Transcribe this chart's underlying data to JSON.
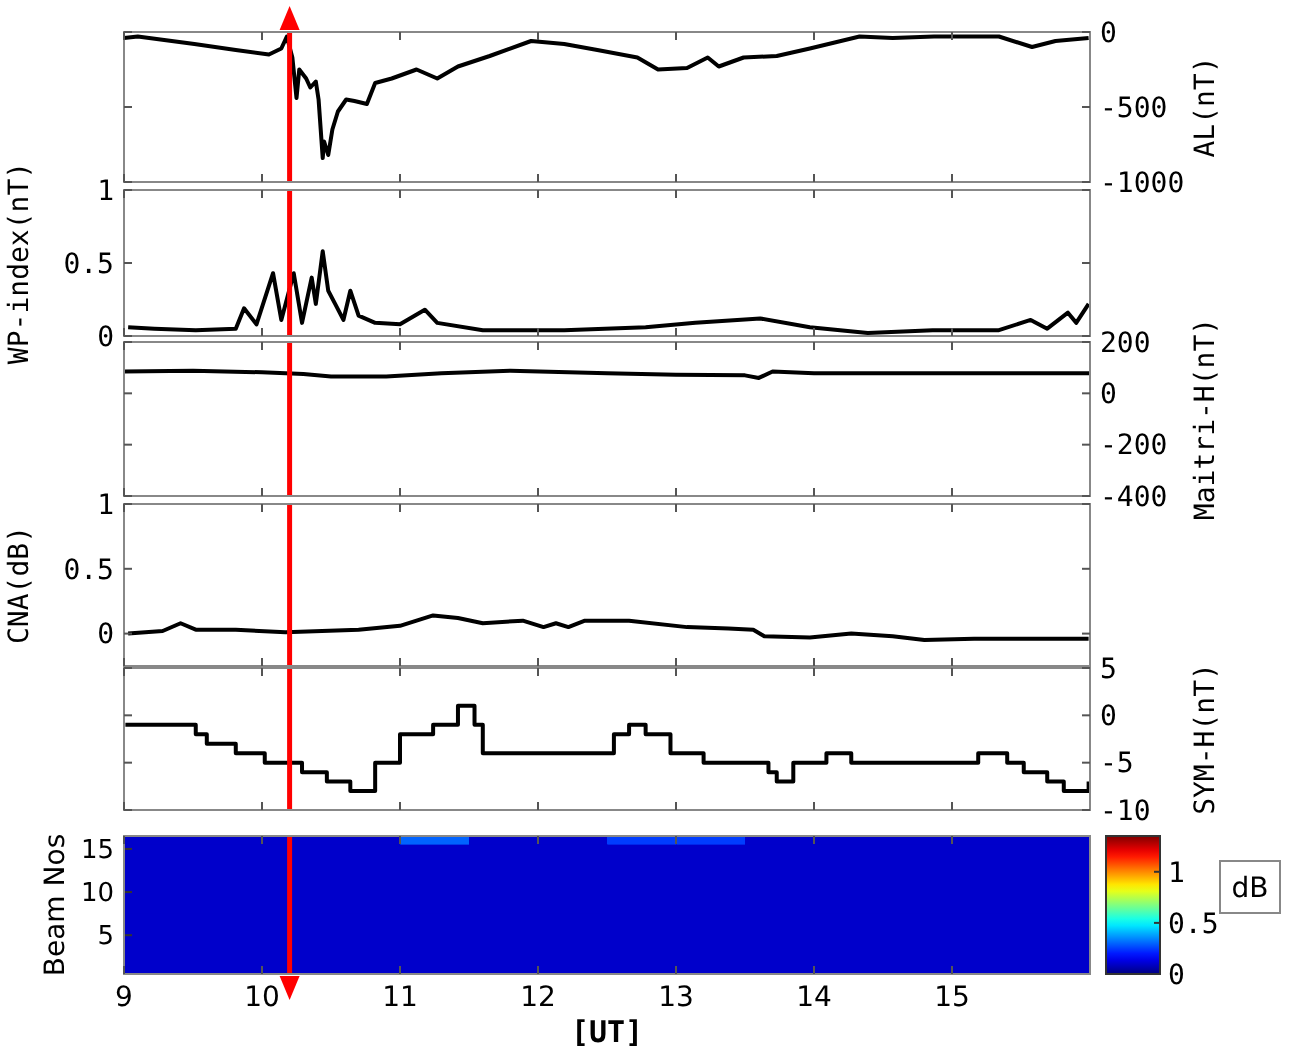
{
  "chart_data": [
    {
      "type": "line",
      "y2label": "AL(nT)",
      "xlim": [
        9,
        16
      ],
      "xticks": [
        9,
        10,
        11,
        12,
        13,
        14,
        15
      ],
      "y2lim": [
        -1000,
        0
      ],
      "y2ticks": [
        0,
        -500,
        -1000
      ],
      "tick_labels": "y",
      "ref_lines": [
        {
          "axis": "x",
          "value": 10.2,
          "color": "#ff0000"
        }
      ],
      "series": [
        {
          "axis": "y2",
          "color": "#000000",
          "x": [
            9.0,
            9.1,
            9.51,
            9.81,
            10.05,
            10.14,
            10.18,
            10.22,
            10.25,
            10.27,
            10.32,
            10.35,
            10.39,
            10.41,
            10.44,
            10.45,
            10.48,
            10.51,
            10.55,
            10.61,
            10.67,
            10.76,
            10.82,
            10.94,
            11.12,
            11.27,
            11.42,
            11.65,
            11.95,
            12.19,
            12.43,
            12.72,
            12.87,
            13.08,
            13.23,
            13.31,
            13.49,
            13.73,
            13.97,
            14.33,
            14.57,
            14.87,
            15.34,
            15.58,
            15.75,
            15.99
          ],
          "values": [
            -40,
            -30,
            -80,
            -120,
            -150,
            -110,
            -30,
            -170,
            -440,
            -250,
            -310,
            -370,
            -330,
            -450,
            -840,
            -730,
            -820,
            -650,
            -530,
            -450,
            -460,
            -480,
            -340,
            -310,
            -250,
            -310,
            -230,
            -160,
            -60,
            -80,
            -120,
            -170,
            -250,
            -240,
            -170,
            -230,
            -170,
            -160,
            -110,
            -30,
            -40,
            -30,
            -30,
            -100,
            -60,
            -40
          ]
        }
      ]
    },
    {
      "type": "line",
      "ylabel": "WP-index(nT)",
      "xlim": [
        9,
        16
      ],
      "xticks": [
        9,
        10,
        11,
        12,
        13,
        14,
        15
      ],
      "ylim": [
        0,
        1
      ],
      "yticks": [
        0,
        0.5,
        1
      ],
      "tick_labels": "y",
      "ref_lines": [
        {
          "axis": "x",
          "value": 10.2,
          "color": "#ff0000"
        }
      ],
      "series": [
        {
          "color": "#000000",
          "x": [
            9.03,
            9.22,
            9.52,
            9.81,
            9.87,
            9.96,
            10.08,
            10.14,
            10.23,
            10.29,
            10.36,
            10.39,
            10.44,
            10.48,
            10.53,
            10.59,
            10.64,
            10.7,
            10.82,
            11.0,
            11.18,
            11.27,
            11.6,
            12.19,
            12.78,
            13.14,
            13.61,
            13.97,
            14.39,
            14.86,
            15.34,
            15.57,
            15.69,
            15.84,
            15.9,
            15.99
          ],
          "values": [
            0.06,
            0.05,
            0.04,
            0.05,
            0.19,
            0.08,
            0.43,
            0.11,
            0.43,
            0.09,
            0.4,
            0.22,
            0.58,
            0.31,
            0.22,
            0.11,
            0.31,
            0.14,
            0.09,
            0.08,
            0.18,
            0.09,
            0.04,
            0.04,
            0.06,
            0.09,
            0.12,
            0.06,
            0.02,
            0.04,
            0.04,
            0.11,
            0.05,
            0.16,
            0.09,
            0.22
          ]
        }
      ]
    },
    {
      "type": "line",
      "y2label": "Maitri-H(nT)",
      "xlim": [
        9,
        16
      ],
      "xticks": [
        9,
        10,
        11,
        12,
        13,
        14,
        15
      ],
      "y2lim": [
        -400,
        200
      ],
      "y2ticks": [
        200,
        0,
        -200,
        -400
      ],
      "tick_labels": "y",
      "ref_lines": [
        {
          "axis": "x",
          "value": 10.2,
          "color": "#ff0000"
        }
      ],
      "series": [
        {
          "axis": "y2",
          "color": "#000000",
          "x": [
            9.0,
            9.5,
            10.0,
            10.3,
            10.5,
            10.9,
            11.3,
            11.8,
            12.5,
            13.0,
            13.5,
            13.6,
            13.7,
            14.0,
            15.0,
            16.0
          ],
          "values": [
            85,
            88,
            82,
            75,
            66,
            66,
            78,
            88,
            78,
            72,
            70,
            60,
            85,
            78,
            78,
            78
          ]
        }
      ]
    },
    {
      "type": "line",
      "ylabel": "CNA(dB)",
      "xlim": [
        9,
        16
      ],
      "xticks": [
        9,
        10,
        11,
        12,
        13,
        14,
        15
      ],
      "ylim": [
        -0.25,
        1
      ],
      "yticks": [
        0,
        0.5,
        1
      ],
      "tick_labels": "y",
      "ref_lines": [
        {
          "axis": "x",
          "value": 10.2,
          "color": "#ff0000"
        }
      ],
      "series": [
        {
          "color": "#000000",
          "x": [
            9.03,
            9.28,
            9.41,
            9.52,
            9.81,
            10.17,
            10.7,
            11.0,
            11.24,
            11.42,
            11.6,
            11.89,
            12.04,
            12.13,
            12.22,
            12.34,
            12.66,
            13.08,
            13.38,
            13.56,
            13.64,
            13.97,
            14.27,
            14.57,
            14.8,
            15.16,
            15.99
          ],
          "values": [
            0,
            0.02,
            0.08,
            0.03,
            0.03,
            0.01,
            0.03,
            0.06,
            0.14,
            0.12,
            0.08,
            0.1,
            0.05,
            0.08,
            0.05,
            0.1,
            0.1,
            0.05,
            0.04,
            0.03,
            -0.02,
            -0.03,
            0,
            -0.02,
            -0.05,
            -0.04,
            -0.04
          ]
        }
      ]
    },
    {
      "type": "step",
      "y2label": "SYM-H(nT)",
      "xlim": [
        9,
        16
      ],
      "xticks": [
        9,
        10,
        11,
        12,
        13,
        14,
        15
      ],
      "y2lim": [
        -10,
        5
      ],
      "y2ticks": [
        5,
        0,
        -5,
        -10
      ],
      "tick_labels": "y",
      "ref_lines": [
        {
          "axis": "x",
          "value": 10.2,
          "color": "#ff0000"
        }
      ],
      "series": [
        {
          "axis": "y2",
          "color": "#000000",
          "x": [
            9.01,
            9.52,
            9.6,
            9.81,
            9.99,
            10.02,
            10.29,
            10.47,
            10.64,
            10.82,
            11.0,
            11.24,
            11.42,
            11.54,
            11.6,
            12.31,
            12.55,
            12.66,
            12.78,
            12.96,
            13.2,
            13.67,
            13.73,
            13.85,
            14.09,
            14.27,
            15.16,
            15.19,
            15.4,
            15.52,
            15.69,
            15.81,
            15.99
          ],
          "values": [
            -1,
            -2,
            -3,
            -4,
            -4,
            -5,
            -6,
            -7,
            -8,
            -5,
            -2,
            -1,
            1,
            -1,
            -4,
            -4,
            -2,
            -1,
            -2,
            -4,
            -5,
            -6,
            -7,
            -5,
            -4,
            -5,
            -5,
            -4,
            -5,
            -6,
            -7,
            -8,
            -7
          ]
        }
      ]
    },
    {
      "type": "heatmap",
      "xlabel": "[UT]",
      "ylabel": "Beam Nos",
      "clabel": "dB",
      "xlim": [
        9,
        16
      ],
      "xticks": [
        9,
        10,
        11,
        12,
        13,
        14,
        15
      ],
      "clim": [
        0,
        1.35
      ],
      "cticks": [
        0,
        0.5,
        1
      ],
      "ref_lines": [
        {
          "axis": "x",
          "value": 10.2,
          "color": "#ff0000"
        }
      ],
      "x": [
        9.25,
        9.75,
        10.25,
        10.75,
        11.25,
        11.75,
        12.25,
        12.75,
        13.25,
        13.75,
        14.25,
        14.75,
        15.25,
        15.75
      ],
      "y_categories": [
        null,
        "15",
        null,
        null,
        null,
        null,
        "10",
        null,
        null,
        null,
        null,
        "5",
        null,
        null,
        null,
        null
      ],
      "cells": [
        [
          0.1,
          0.1,
          0.1,
          0.1,
          0.3,
          0.1,
          0.1,
          0.25,
          0.25,
          0.1,
          0.1,
          0.1,
          0.1,
          0.1
        ],
        [
          0.1,
          0.1,
          0.1,
          0.1,
          0.1,
          0.1,
          0.1,
          0.1,
          0.1,
          0.1,
          0.1,
          0.1,
          0.1,
          0.1
        ],
        [
          0.1,
          0.1,
          0.1,
          0.1,
          0.1,
          0.1,
          0.1,
          0.1,
          0.1,
          0.1,
          0.1,
          0.1,
          0.1,
          0.1
        ],
        [
          0.1,
          0.1,
          0.1,
          0.1,
          0.1,
          0.1,
          0.1,
          0.1,
          0.1,
          0.1,
          0.1,
          0.1,
          0.1,
          0.1
        ],
        [
          0.1,
          0.1,
          0.1,
          0.1,
          0.1,
          0.1,
          0.1,
          0.1,
          0.1,
          0.1,
          0.1,
          0.1,
          0.1,
          0.1
        ],
        [
          0.1,
          0.1,
          0.1,
          0.1,
          0.1,
          0.1,
          0.1,
          0.1,
          0.1,
          0.1,
          0.1,
          0.1,
          0.1,
          0.1
        ],
        [
          0.1,
          0.1,
          0.1,
          0.1,
          0.1,
          0.1,
          0.1,
          0.1,
          0.1,
          0.1,
          0.1,
          0.1,
          0.1,
          0.1
        ],
        [
          0.1,
          0.1,
          0.1,
          0.1,
          0.1,
          0.1,
          0.1,
          0.1,
          0.1,
          0.1,
          0.1,
          0.1,
          0.1,
          0.1
        ],
        [
          0.1,
          0.1,
          0.1,
          0.1,
          0.1,
          0.1,
          0.1,
          0.1,
          0.1,
          0.1,
          0.1,
          0.1,
          0.1,
          0.1
        ],
        [
          0.1,
          0.1,
          0.1,
          0.1,
          0.1,
          0.1,
          0.1,
          0.1,
          0.1,
          0.1,
          0.1,
          0.1,
          0.1,
          0.1
        ],
        [
          0.1,
          0.1,
          0.1,
          0.1,
          0.1,
          0.1,
          0.1,
          0.1,
          0.1,
          0.1,
          0.1,
          0.1,
          0.1,
          0.1
        ],
        [
          0.1,
          0.1,
          0.1,
          0.1,
          0.1,
          0.1,
          0.1,
          0.1,
          0.1,
          0.1,
          0.1,
          0.1,
          0.1,
          0.1
        ],
        [
          0.1,
          0.1,
          0.1,
          0.1,
          0.1,
          0.1,
          0.1,
          0.1,
          0.1,
          0.1,
          0.1,
          0.1,
          0.1,
          0.1
        ],
        [
          0.1,
          0.1,
          0.1,
          0.1,
          0.1,
          0.1,
          0.1,
          0.1,
          0.1,
          0.1,
          0.1,
          0.1,
          0.1,
          0.1
        ],
        [
          0.1,
          0.1,
          0.1,
          0.1,
          0.1,
          0.1,
          0.1,
          0.1,
          0.1,
          0.1,
          0.1,
          0.1,
          0.1,
          0.1
        ],
        [
          0.1,
          0.1,
          0.1,
          0.1,
          0.1,
          0.1,
          0.1,
          0.1,
          0.1,
          0.1,
          0.1,
          0.1,
          0.1,
          0.1
        ]
      ]
    }
  ]
}
